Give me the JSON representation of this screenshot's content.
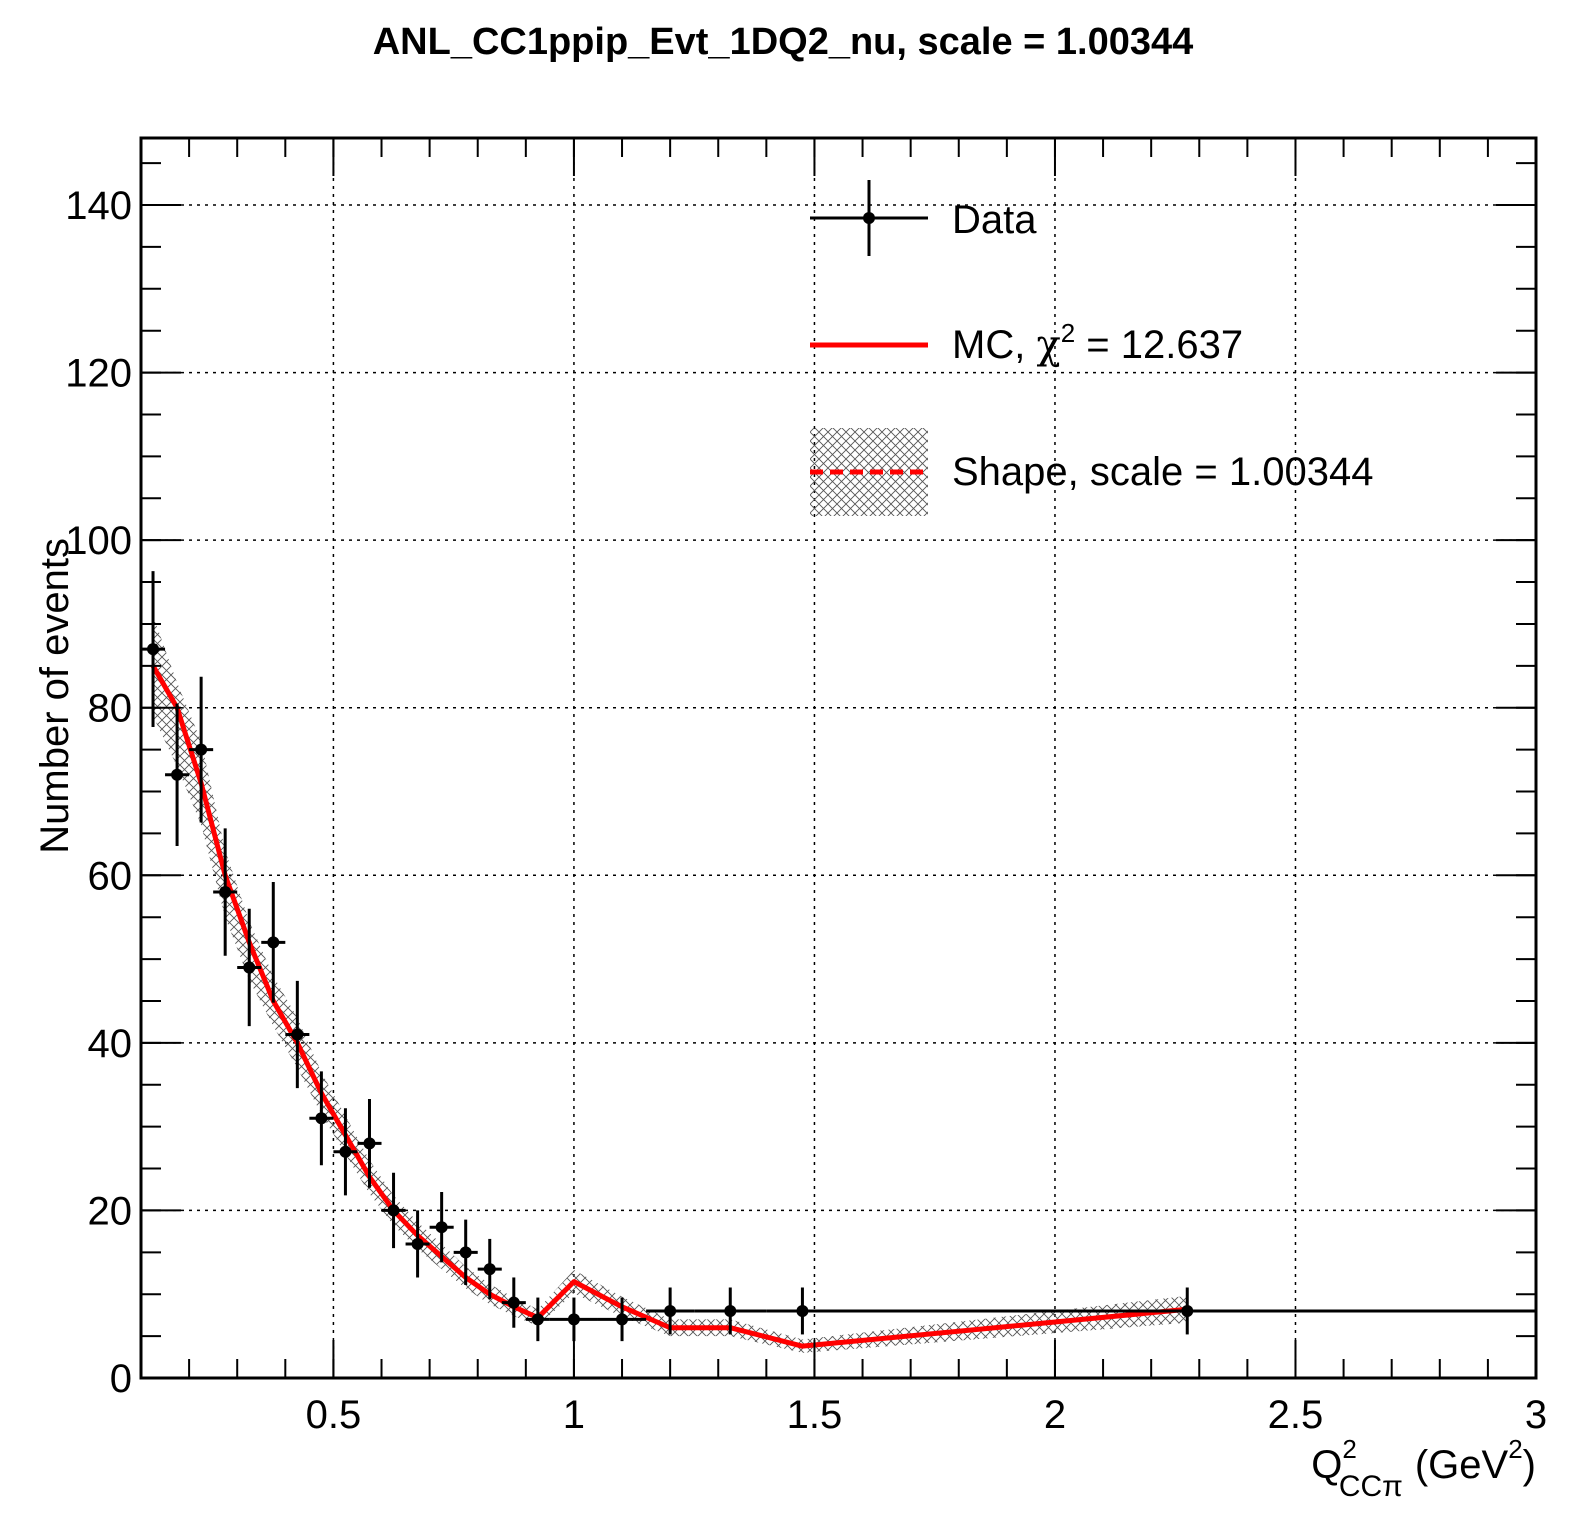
{
  "chart_data": {
    "type": "scatter",
    "title": "ANL_CC1ppip_Evt_1DQ2_nu, scale = 1.00344",
    "xlabel": {
      "base": "Q",
      "sup": "2",
      "sub": "CCπ",
      "unit": "(GeV",
      "unit_sup": "2",
      "unit_close": ")"
    },
    "ylabel": "Number of events",
    "xlim": [
      0.1,
      3.0
    ],
    "ylim": [
      0,
      148
    ],
    "grid": true,
    "x_ticks": [
      {
        "v": 0.5,
        "label": "0.5"
      },
      {
        "v": 1,
        "label": "1"
      },
      {
        "v": 1.5,
        "label": "1.5"
      },
      {
        "v": 2,
        "label": "2"
      },
      {
        "v": 2.5,
        "label": "2.5"
      },
      {
        "v": 3,
        "label": "3"
      }
    ],
    "y_ticks": [
      {
        "v": 0,
        "label": "0"
      },
      {
        "v": 20,
        "label": "20"
      },
      {
        "v": 40,
        "label": "40"
      },
      {
        "v": 60,
        "label": "60"
      },
      {
        "v": 80,
        "label": "80"
      },
      {
        "v": 100,
        "label": "100"
      },
      {
        "v": 120,
        "label": "120"
      },
      {
        "v": 140,
        "label": "140"
      }
    ],
    "legend": {
      "placement": "top-right",
      "entries": [
        {
          "key": "data",
          "label": "Data"
        },
        {
          "key": "mc",
          "label_prefix": "MC, ",
          "label_symbol": "χ",
          "label_sup": "2",
          "label_suffix": " = 12.637"
        },
        {
          "key": "shape",
          "label": "Shape, scale = 1.00344"
        }
      ]
    },
    "data_series": {
      "name": "Data",
      "points": [
        {
          "x": 0.125,
          "y": 87,
          "xlo": 0.1,
          "xhi": 0.15,
          "err": 9.3
        },
        {
          "x": 0.175,
          "y": 72,
          "xlo": 0.15,
          "xhi": 0.2,
          "err": 8.5
        },
        {
          "x": 0.225,
          "y": 75,
          "xlo": 0.2,
          "xhi": 0.25,
          "err": 8.7
        },
        {
          "x": 0.275,
          "y": 58,
          "xlo": 0.25,
          "xhi": 0.3,
          "err": 7.6
        },
        {
          "x": 0.325,
          "y": 49,
          "xlo": 0.3,
          "xhi": 0.35,
          "err": 7.0
        },
        {
          "x": 0.375,
          "y": 52,
          "xlo": 0.35,
          "xhi": 0.4,
          "err": 7.2
        },
        {
          "x": 0.425,
          "y": 41,
          "xlo": 0.4,
          "xhi": 0.45,
          "err": 6.4
        },
        {
          "x": 0.475,
          "y": 31,
          "xlo": 0.45,
          "xhi": 0.5,
          "err": 5.6
        },
        {
          "x": 0.525,
          "y": 27,
          "xlo": 0.5,
          "xhi": 0.55,
          "err": 5.2
        },
        {
          "x": 0.575,
          "y": 28,
          "xlo": 0.55,
          "xhi": 0.6,
          "err": 5.3
        },
        {
          "x": 0.625,
          "y": 20,
          "xlo": 0.6,
          "xhi": 0.65,
          "err": 4.5
        },
        {
          "x": 0.675,
          "y": 16,
          "xlo": 0.65,
          "xhi": 0.7,
          "err": 4.0
        },
        {
          "x": 0.725,
          "y": 18,
          "xlo": 0.7,
          "xhi": 0.75,
          "err": 4.2
        },
        {
          "x": 0.775,
          "y": 15,
          "xlo": 0.75,
          "xhi": 0.8,
          "err": 3.9
        },
        {
          "x": 0.825,
          "y": 13,
          "xlo": 0.8,
          "xhi": 0.85,
          "err": 3.6
        },
        {
          "x": 0.875,
          "y": 9,
          "xlo": 0.85,
          "xhi": 0.9,
          "err": 3.0
        },
        {
          "x": 0.925,
          "y": 7,
          "xlo": 0.9,
          "xhi": 0.95,
          "err": 2.6
        },
        {
          "x": 1.0,
          "y": 7,
          "xlo": 0.95,
          "xhi": 1.05,
          "err": 2.6
        },
        {
          "x": 1.1,
          "y": 7,
          "xlo": 1.05,
          "xhi": 1.15,
          "err": 2.6
        },
        {
          "x": 1.2,
          "y": 8,
          "xlo": 1.15,
          "xhi": 1.25,
          "err": 2.8
        },
        {
          "x": 1.325,
          "y": 8,
          "xlo": 1.25,
          "xhi": 1.4,
          "err": 2.8
        },
        {
          "x": 1.475,
          "y": 8,
          "xlo": 1.4,
          "xhi": 1.55,
          "err": 2.8
        },
        {
          "x": 2.275,
          "y": 8,
          "xlo": 1.55,
          "xhi": 3.0,
          "err": 2.8
        }
      ]
    },
    "mc_series": {
      "x": [
        0.125,
        0.175,
        0.225,
        0.275,
        0.325,
        0.375,
        0.425,
        0.475,
        0.525,
        0.575,
        0.625,
        0.675,
        0.725,
        0.775,
        0.825,
        0.875,
        0.925,
        1.0,
        1.1,
        1.2,
        1.325,
        1.475,
        2.275
      ],
      "y": [
        85,
        80,
        71,
        60,
        52,
        45,
        40,
        34,
        29,
        24,
        20,
        17,
        14.5,
        12,
        10,
        8.5,
        7.2,
        11.5,
        8.5,
        6,
        6,
        3.8,
        8.2
      ]
    },
    "shape_band": {
      "x": [
        0.125,
        0.175,
        0.225,
        0.275,
        0.325,
        0.375,
        0.425,
        0.475,
        0.525,
        0.575,
        0.625,
        0.675,
        0.725,
        0.775,
        0.825,
        0.875,
        0.925,
        1.0,
        1.1,
        1.2,
        1.325,
        1.475,
        2.275
      ],
      "y": [
        85,
        78,
        71,
        59,
        51,
        45,
        40,
        34,
        29,
        24,
        20,
        17,
        14.5,
        12,
        10,
        8.5,
        7.2,
        11.5,
        8.5,
        6,
        6,
        3.8,
        8.2
      ],
      "err": [
        6,
        5,
        5,
        4,
        3.5,
        3,
        3,
        2.5,
        2.3,
        2,
        1.8,
        1.6,
        1.5,
        1.3,
        1.2,
        1.1,
        1,
        1.4,
        1.2,
        1,
        1,
        0.8,
        1.6
      ]
    },
    "colors": {
      "data": "#000000",
      "mc": "#ff0000",
      "grid": "#000000",
      "hatch": "#555555"
    }
  }
}
